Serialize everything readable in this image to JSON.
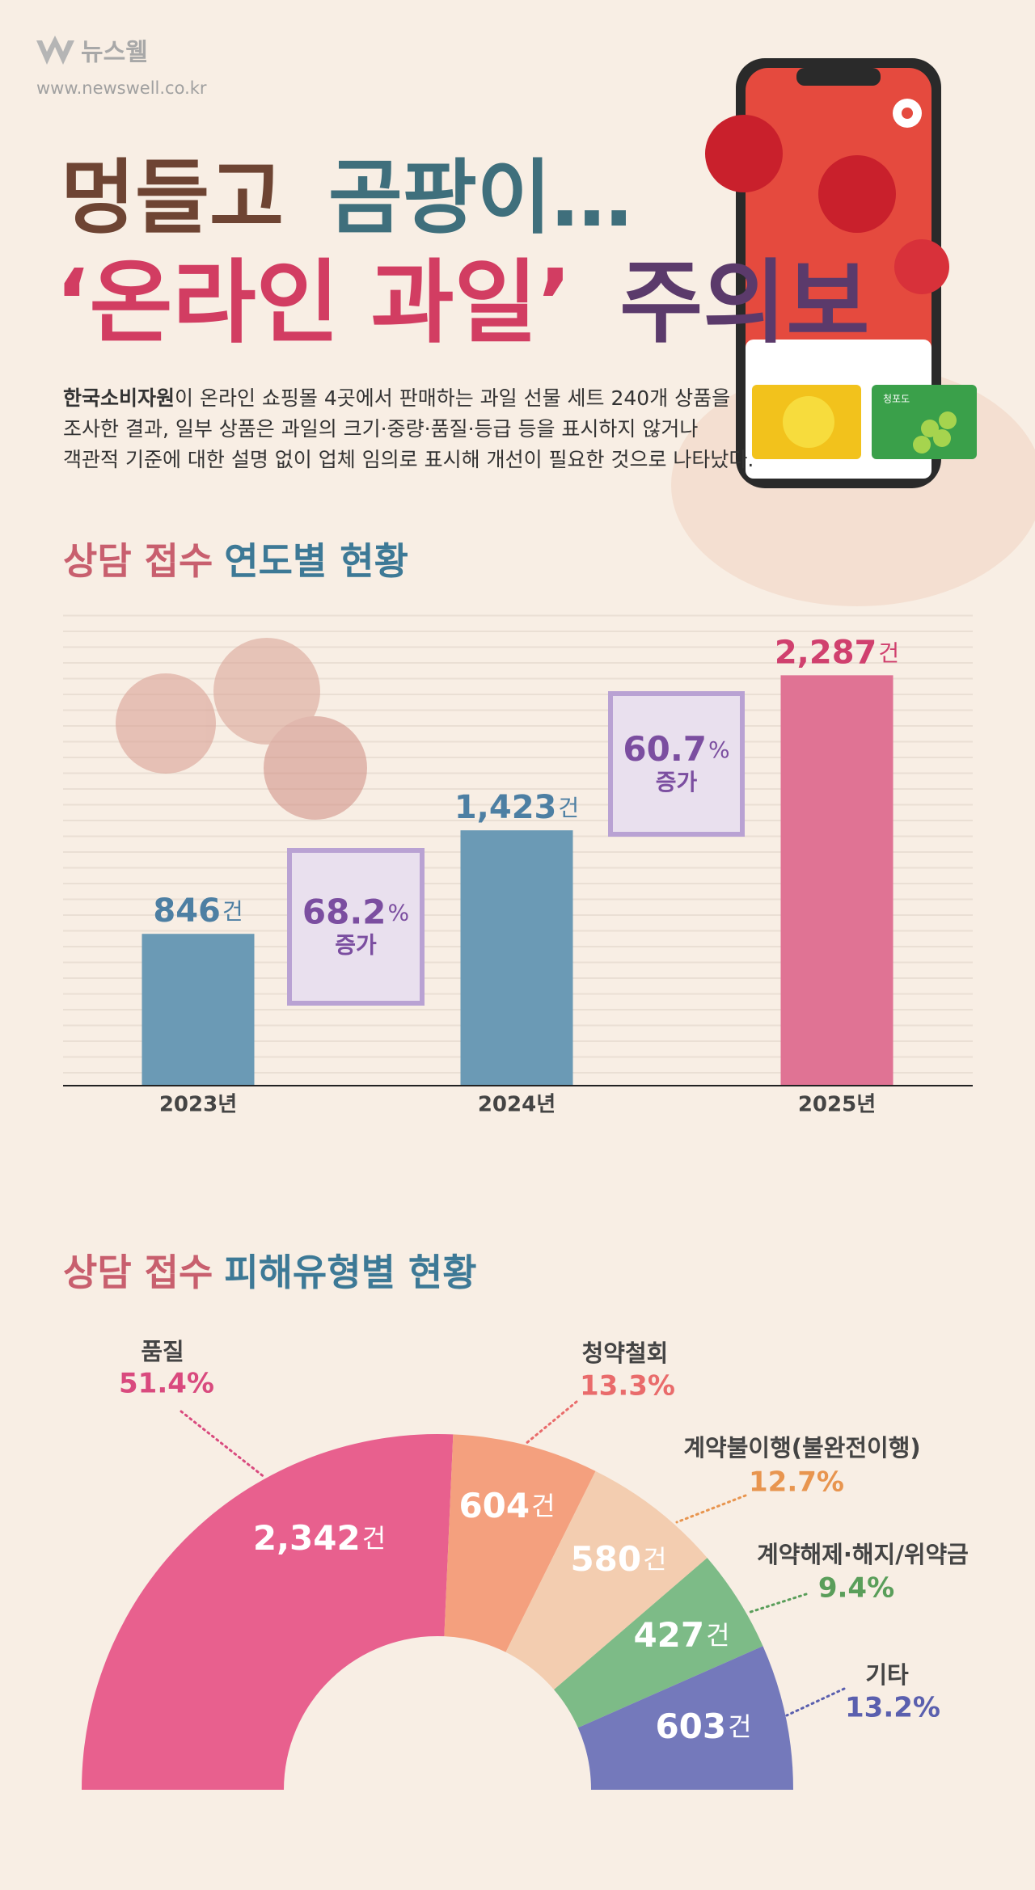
{
  "header": {
    "logo": "뉴스웰",
    "url": "www.newswell.co.kr",
    "title_line1": [
      "멍들고",
      "곰팡이…"
    ],
    "title_line2": [
      "‘온라인 과일’",
      "주의보"
    ],
    "description": {
      "lead": "한국소비자원",
      "lines": [
        "이 온라인 쇼핑몰 4곳에서 판매하는 과일 선물 세트 240개 상품을",
        "조사한 결과, 일부 상품은 과일의 크기·중량·품질·등급 등을 표시하지 않거나",
        "객관적 기준에 대한 설명 없이 업체 임의로 표시해 개선이 필요한 것으로 나타났다."
      ]
    },
    "phone_label": "청포도"
  },
  "chart_data": [
    {
      "type": "bar",
      "title_parts": [
        "상담 접수",
        "연도별 현황"
      ],
      "categories": [
        "2023년",
        "2024년",
        "2025년"
      ],
      "values": [
        846,
        1423,
        2287
      ],
      "value_labels": [
        "846",
        "1,423",
        "2,287"
      ],
      "unit": "건",
      "colors": [
        "#6b9ab5",
        "#6b9ab5",
        "#e07394"
      ],
      "label_colors": [
        "#4d7fa3",
        "#4d7fa3",
        "#d0406e"
      ],
      "ylim": [
        0,
        2640
      ],
      "annotations": [
        {
          "value": "68.2",
          "unit": "%",
          "text": "증가"
        },
        {
          "value": "60.7",
          "unit": "%",
          "text": "증가"
        }
      ]
    },
    {
      "type": "half-donut",
      "title_parts": [
        "상담 접수",
        "피해유형별 현황"
      ],
      "categories": [
        "품질",
        "청약철회",
        "계약불이행(불완전이행)",
        "계약해제·해지/위약금",
        "기타"
      ],
      "values": [
        2342,
        604,
        580,
        427,
        603
      ],
      "value_labels": [
        "2,342",
        "604",
        "580",
        "427",
        "603"
      ],
      "unit": "건",
      "share_labels": [
        "51.4%",
        "13.3%",
        "12.7%",
        "9.4%",
        "13.2%"
      ],
      "colors": [
        "#e8608e",
        "#f4a07e",
        "#f3cdb0",
        "#7dbb87",
        "#7479bb"
      ],
      "share_colors": [
        "#d94a7e",
        "#e96b6b",
        "#e8954f",
        "#5a9e5a",
        "#5a5fae"
      ]
    }
  ]
}
